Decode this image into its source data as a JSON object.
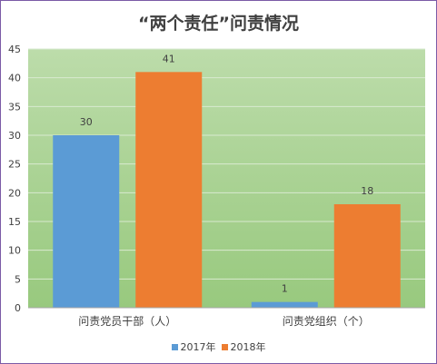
{
  "chart_data": {
    "type": "bar",
    "title": "“两个责任”问责情况",
    "categories": [
      "问责党员干部（人）",
      "问责党组织（个）"
    ],
    "series": [
      {
        "name": "2017年",
        "values": [
          30,
          1
        ],
        "color": "#5b9bd5"
      },
      {
        "name": "2018年",
        "values": [
          41,
          18
        ],
        "color": "#ed7d31"
      }
    ],
    "ylim": [
      0,
      45
    ],
    "yticks": [
      0,
      5,
      10,
      15,
      20,
      25,
      30,
      35,
      40,
      45
    ],
    "data_labels": true,
    "grid": true,
    "legend": "bottom",
    "plot_background": "#a9d18e"
  }
}
